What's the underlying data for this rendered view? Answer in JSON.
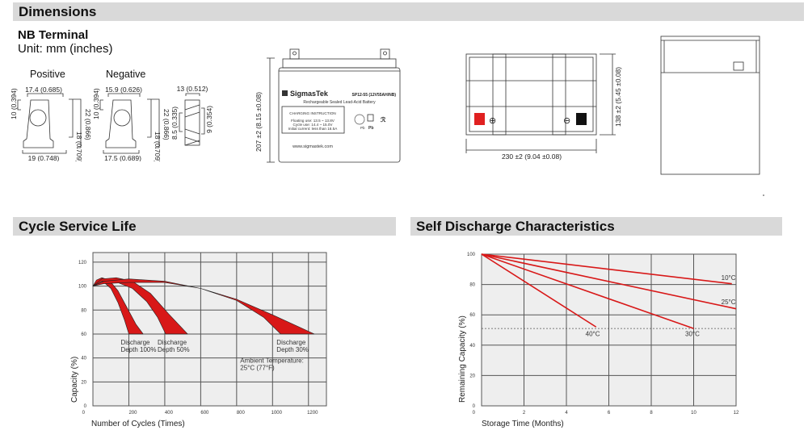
{
  "sections": {
    "dimensions": "Dimensions",
    "cycle": "Cycle Service Life",
    "self_discharge": "Self Discharge Characteristics"
  },
  "terminal": {
    "title": "NB Terminal",
    "unit": "Unit: mm (inches)",
    "positive": "Positive",
    "negative": "Negative",
    "pos_top": "17.4 (0.685)",
    "pos_bottom": "19 (0.748)",
    "pos_left": "10 (0.394)",
    "pos_right1": "18 (0.709)",
    "pos_right2": "22 (0.866)",
    "neg_top": "15.9 (0.626)",
    "neg_bottom": "17.5 (0.689)",
    "neg_left": "10 (0.394)",
    "neg_right1": "18 (0.709)",
    "neg_right2": "22 (0.866)",
    "side_top": "13 (0.512)",
    "side_left": "8.5 (0.335)",
    "side_right": "9 (0.354)"
  },
  "battery": {
    "height_dim": "207 ±2 (8.15 ±0.08)",
    "length_dim": "230 ±2 (9.04 ±0.08)",
    "width_dim": "138 ±2 (5.45 ±0.08)",
    "brand": "SigmasTek",
    "model": "SP12-55 (12V55AH/NB)",
    "subtitle": "Rechargeable Sealed Lead-Acid Battery",
    "charging_title": "CHARGING INSTRUCTION",
    "charging_lines": [
      "Floating use: 13.5 ~ 13.8V",
      "Cycle use: 14.4 ~ 15.0V",
      "Initial current: less than 16.5A"
    ],
    "website": "www.sigmastek.com",
    "pb1": "Pb",
    "pb2": "Pb",
    "positive_symbol": "⊕",
    "negative_symbol": "⊖",
    "positive_color": "#e02020",
    "negative_color": "#111111"
  },
  "chart_data": [
    {
      "type": "area",
      "title": "Cycle Service Life",
      "xlabel": "Number of Cycles (Times)",
      "ylabel": "Capacity (%)",
      "xlim": [
        0,
        1300
      ],
      "ylim": [
        0,
        128
      ],
      "xticks": [
        200,
        400,
        600,
        800,
        1000,
        1200
      ],
      "yticks": [
        0,
        20,
        40,
        60,
        80,
        100,
        120
      ],
      "grid": true,
      "color": "#d81818",
      "series": [
        {
          "name": "Discharge Depth 100%",
          "label_lines": [
            "Discharge",
            "Depth 100%"
          ],
          "upper": [
            [
              0,
              100
            ],
            [
              20,
              105
            ],
            [
              50,
              107
            ],
            [
              90,
              105
            ],
            [
              140,
              96
            ],
            [
              190,
              82
            ],
            [
              240,
              68
            ],
            [
              280,
              60
            ]
          ],
          "lower": [
            [
              0,
              100
            ],
            [
              25,
              103
            ],
            [
              55,
              104
            ],
            [
              100,
              98
            ],
            [
              140,
              86
            ],
            [
              175,
              72
            ],
            [
              200,
              60
            ]
          ]
        },
        {
          "name": "Discharge Depth 50%",
          "label_lines": [
            "Discharge",
            "Depth 50%"
          ],
          "upper": [
            [
              0,
              100
            ],
            [
              50,
              106
            ],
            [
              130,
              107
            ],
            [
              220,
              104
            ],
            [
              320,
              94
            ],
            [
              420,
              77
            ],
            [
              527,
              60
            ]
          ],
          "lower": [
            [
              0,
              100
            ],
            [
              50,
              104
            ],
            [
              120,
              104
            ],
            [
              220,
              98
            ],
            [
              300,
              87
            ],
            [
              360,
              74
            ],
            [
              405,
              60
            ]
          ]
        },
        {
          "name": "Discharge Depth 30%",
          "label_lines": [
            "Discharge",
            "Depth 30%"
          ],
          "upper": [
            [
              0,
              100
            ],
            [
              60,
              104
            ],
            [
              200,
              106
            ],
            [
              400,
              104
            ],
            [
              600,
              98
            ],
            [
              800,
              89
            ],
            [
              1000,
              76
            ],
            [
              1232,
              60
            ]
          ],
          "lower": [
            [
              0,
              100
            ],
            [
              60,
              102
            ],
            [
              200,
              103
            ],
            [
              400,
              103
            ],
            [
              600,
              98
            ],
            [
              800,
              88
            ],
            [
              950,
              74
            ],
            [
              1045,
              60
            ]
          ]
        }
      ],
      "annotation": [
        "Ambient Temperature:",
        "25°C (77°F)"
      ]
    },
    {
      "type": "line",
      "title": "Self Discharge Characteristics",
      "xlabel": "Storage Time (Months)",
      "ylabel": "Remaining Capacity (%)",
      "xlim": [
        0,
        12
      ],
      "ylim": [
        0,
        100
      ],
      "xticks": [
        0,
        2,
        4,
        6,
        8,
        10,
        12
      ],
      "yticks": [
        0,
        20,
        40,
        60,
        80,
        100
      ],
      "grid": true,
      "color": "#d81818",
      "reference_line": 51,
      "series": [
        {
          "name": "10°C",
          "x": [
            0,
            11.8
          ],
          "y": [
            100,
            80.5
          ]
        },
        {
          "name": "25°C",
          "x": [
            0,
            12
          ],
          "y": [
            100,
            64
          ]
        },
        {
          "name": "30°C",
          "x": [
            0,
            10
          ],
          "y": [
            100,
            51
          ]
        },
        {
          "name": "40°C",
          "x": [
            0,
            5.4
          ],
          "y": [
            100,
            52
          ]
        }
      ]
    }
  ]
}
